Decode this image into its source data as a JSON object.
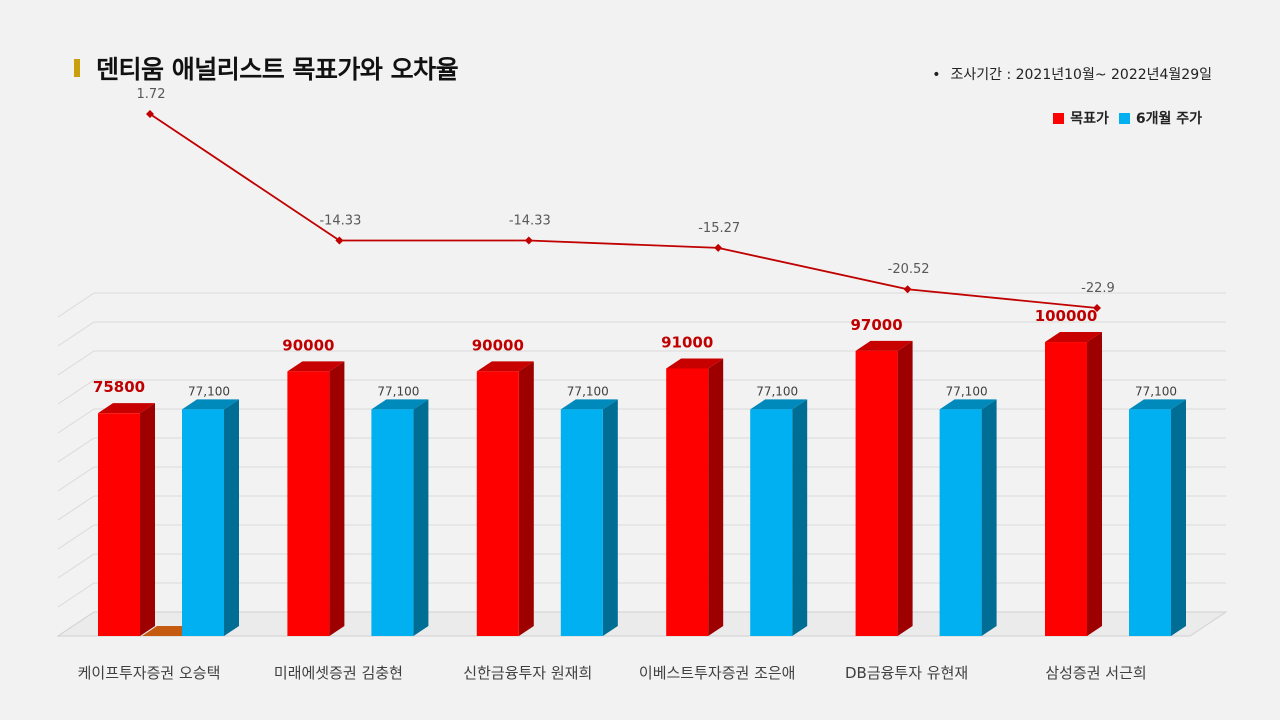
{
  "title": "덴티움 애널리스트 목표가와 오차율",
  "period": "조사기간 : 2021년10월~ 2022년4월29일",
  "colors": {
    "target": "#ff0000",
    "price": "#00b0f0",
    "line": "#c00000",
    "accent": "#c9a00c"
  },
  "chart_data": {
    "type": "bar",
    "categories": [
      "케이프투자증권 오승택",
      "미래에셋증권 김충현",
      "신한금융투자 원재희",
      "이베스트투자증권 조은애",
      "DB금융투자 유현재",
      "삼성증권 서근희"
    ],
    "series": [
      {
        "name": "목표가",
        "values": [
          75800,
          90000,
          90000,
          91000,
          97000,
          100000
        ],
        "labels": [
          "75800",
          "90000",
          "90000",
          "91000",
          "97000",
          "100000"
        ]
      },
      {
        "name": "6개월 주가",
        "values": [
          77100,
          77100,
          77100,
          77100,
          77100,
          77100
        ],
        "labels": [
          "77,100",
          "77,100",
          "77,100",
          "77,100",
          "77,100",
          "77,100"
        ]
      }
    ],
    "error_line": {
      "values": [
        1.72,
        -14.33,
        -14.33,
        -15.27,
        -20.52,
        -22.9
      ],
      "labels": [
        "1.72",
        "-14.33",
        "-14.33",
        "-15.27",
        "-20.52",
        "-22.9"
      ]
    },
    "legend_position": "top-right",
    "grid": true
  }
}
